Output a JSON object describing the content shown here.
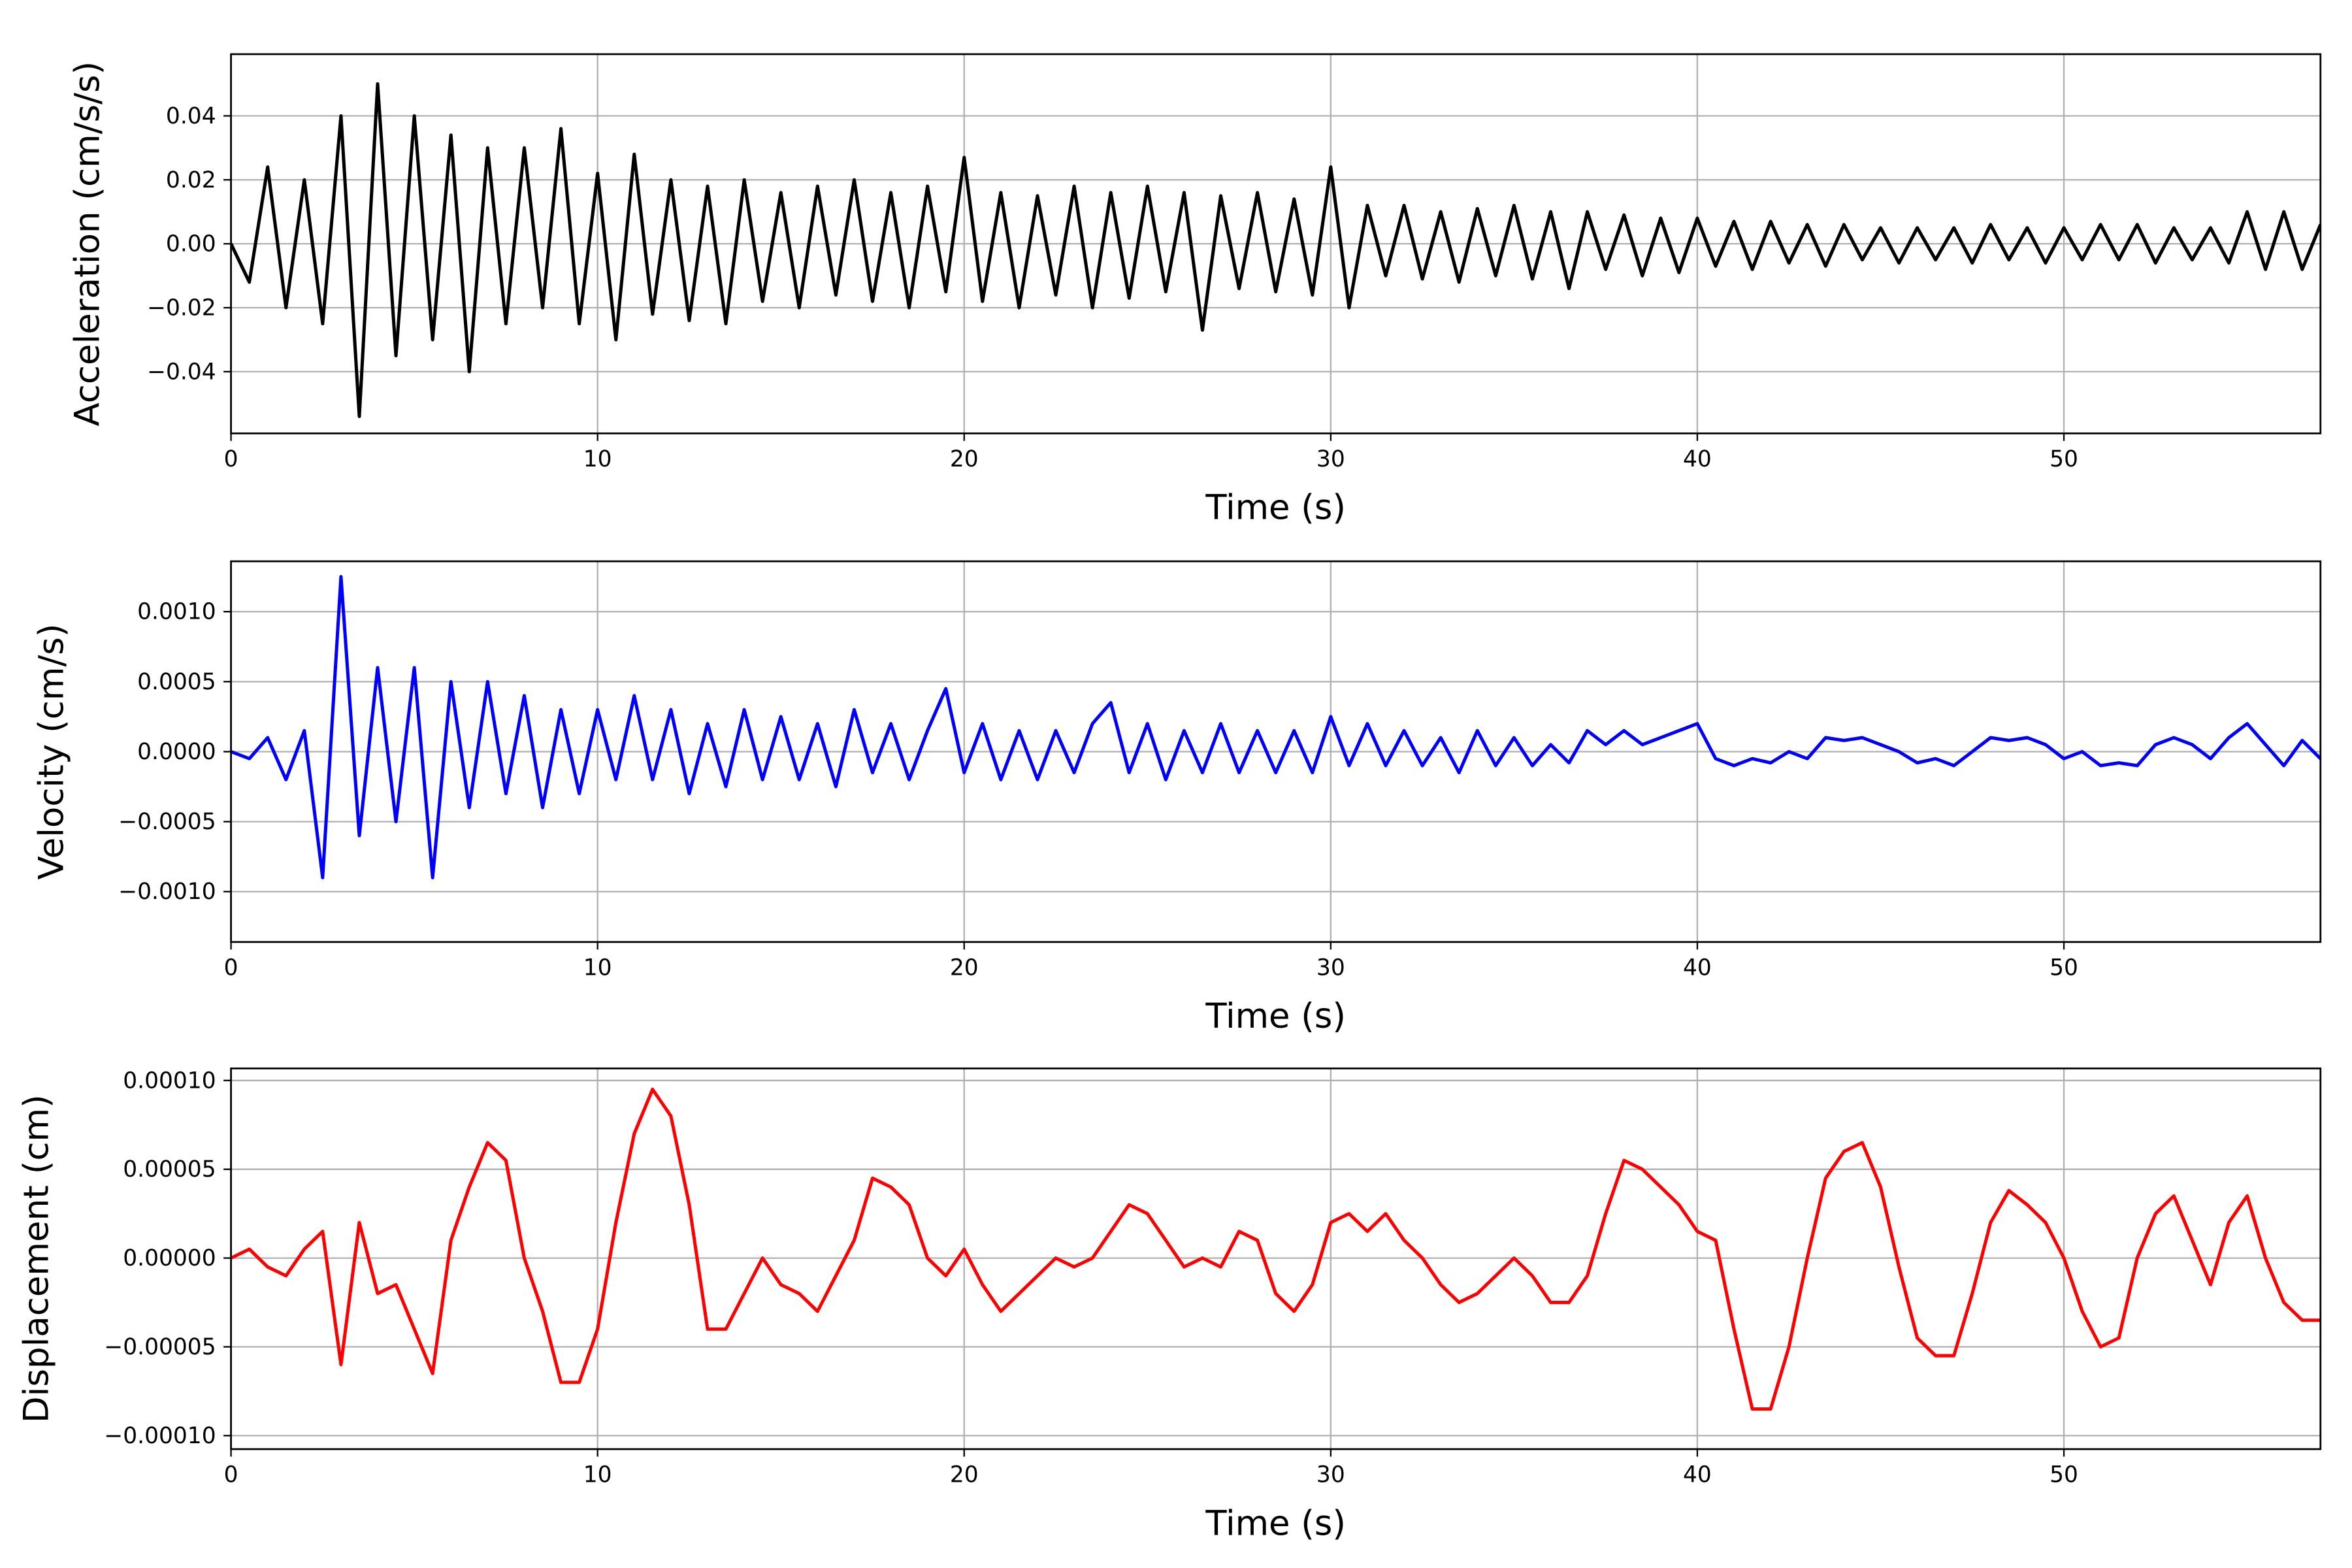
{
  "chart_data": [
    {
      "type": "line",
      "xlabel": "Time (s)",
      "ylabel": "Acceleration (cm/s/s)",
      "color": "#000000",
      "grid": true,
      "xlim": [
        0,
        57
      ],
      "xticks": [
        0,
        10,
        20,
        30,
        40,
        50
      ],
      "ylim": [
        -0.0593,
        0.0593
      ],
      "yticks": [
        {
          "value": -0.04,
          "label": "−0.04"
        },
        {
          "value": -0.02,
          "label": "−0.02"
        },
        {
          "value": 0,
          "label": "0.00"
        },
        0.02,
        0.04
      ],
      "x": [
        0,
        0.5,
        1,
        1.5,
        2,
        2.5,
        3,
        3.5,
        4,
        4.5,
        5,
        5.5,
        6,
        6.5,
        7,
        7.5,
        8,
        8.5,
        9,
        9.5,
        10,
        10.5,
        11,
        11.5,
        12,
        12.5,
        13,
        13.5,
        14,
        14.5,
        15,
        15.5,
        16,
        16.5,
        17,
        17.5,
        18,
        18.5,
        19,
        19.5,
        20,
        20.5,
        21,
        21.5,
        22,
        22.5,
        23,
        23.5,
        24,
        24.5,
        25,
        25.5,
        26,
        26.5,
        27,
        27.5,
        28,
        28.5,
        29,
        29.5,
        30,
        30.5,
        31,
        31.5,
        32,
        32.5,
        33,
        33.5,
        34,
        34.5,
        35,
        35.5,
        36,
        36.5,
        37,
        37.5,
        38,
        38.5,
        39,
        39.5,
        40,
        40.5,
        41,
        41.5,
        42,
        42.5,
        43,
        43.5,
        44,
        44.5,
        45,
        45.5,
        46,
        46.5,
        47,
        47.5,
        48,
        48.5,
        49,
        49.5,
        50,
        50.5,
        51,
        51.5,
        52,
        52.5,
        53,
        53.5,
        54,
        54.5,
        55,
        55.5,
        56,
        56.5,
        57
      ],
      "values": [
        0,
        -0.012,
        0.024,
        -0.02,
        0.02,
        -0.025,
        0.04,
        -0.054,
        0.05,
        -0.035,
        0.04,
        -0.03,
        0.034,
        -0.04,
        0.03,
        -0.025,
        0.03,
        -0.02,
        0.036,
        -0.025,
        0.022,
        -0.03,
        0.028,
        -0.022,
        0.02,
        -0.024,
        0.018,
        -0.025,
        0.02,
        -0.018,
        0.016,
        -0.02,
        0.018,
        -0.016,
        0.02,
        -0.018,
        0.016,
        -0.02,
        0.018,
        -0.015,
        0.027,
        -0.018,
        0.016,
        -0.02,
        0.015,
        -0.016,
        0.018,
        -0.02,
        0.016,
        -0.017,
        0.018,
        -0.015,
        0.016,
        -0.027,
        0.015,
        -0.014,
        0.016,
        -0.015,
        0.014,
        -0.016,
        0.024,
        -0.02,
        0.012,
        -0.01,
        0.012,
        -0.011,
        0.01,
        -0.012,
        0.011,
        -0.01,
        0.012,
        -0.011,
        0.01,
        -0.014,
        0.01,
        -0.008,
        0.009,
        -0.01,
        0.008,
        -0.009,
        0.008,
        -0.007,
        0.007,
        -0.008,
        0.007,
        -0.006,
        0.006,
        -0.007,
        0.006,
        -0.005,
        0.005,
        -0.006,
        0.005,
        -0.005,
        0.005,
        -0.006,
        0.006,
        -0.005,
        0.005,
        -0.006,
        0.005,
        -0.005,
        0.006,
        -0.005,
        0.006,
        -0.006,
        0.005,
        -0.005,
        0.005,
        -0.006,
        0.01,
        -0.008,
        0.01,
        -0.008,
        0.006
      ]
    },
    {
      "type": "line",
      "xlabel": "Time (s)",
      "ylabel": "Velocity (cm/s)",
      "color": "#0000ff",
      "grid": true,
      "xlim": [
        0,
        57
      ],
      "xticks": [
        0,
        10,
        20,
        30,
        40,
        50
      ],
      "ylim": [
        -0.00136,
        0.00136
      ],
      "yticks": [
        {
          "value": -0.001,
          "label": "−0.0010"
        },
        {
          "value": -0.0005,
          "label": "−0.0005"
        },
        {
          "value": 0,
          "label": "0.0000"
        },
        0.0005,
        {
          "value": 0.001,
          "label": "0.0010"
        }
      ],
      "x": [
        0,
        0.5,
        1,
        1.5,
        2,
        2.5,
        3,
        3.5,
        4,
        4.5,
        5,
        5.5,
        6,
        6.5,
        7,
        7.5,
        8,
        8.5,
        9,
        9.5,
        10,
        10.5,
        11,
        11.5,
        12,
        12.5,
        13,
        13.5,
        14,
        14.5,
        15,
        15.5,
        16,
        16.5,
        17,
        17.5,
        18,
        18.5,
        19,
        19.5,
        20,
        20.5,
        21,
        21.5,
        22,
        22.5,
        23,
        23.5,
        24,
        24.5,
        25,
        25.5,
        26,
        26.5,
        27,
        27.5,
        28,
        28.5,
        29,
        29.5,
        30,
        30.5,
        31,
        31.5,
        32,
        32.5,
        33,
        33.5,
        34,
        34.5,
        35,
        35.5,
        36,
        36.5,
        37,
        37.5,
        38,
        38.5,
        39,
        39.5,
        40,
        40.5,
        41,
        41.5,
        42,
        42.5,
        43,
        43.5,
        44,
        44.5,
        45,
        45.5,
        46,
        46.5,
        47,
        47.5,
        48,
        48.5,
        49,
        49.5,
        50,
        50.5,
        51,
        51.5,
        52,
        52.5,
        53,
        53.5,
        54,
        54.5,
        55,
        55.5,
        56,
        56.5,
        57
      ],
      "values": [
        0,
        -5e-05,
        0.0001,
        -0.0002,
        0.00015,
        -0.0009,
        0.00125,
        -0.0006,
        0.0006,
        -0.0005,
        0.0006,
        -0.0009,
        0.0005,
        -0.0004,
        0.0005,
        -0.0003,
        0.0004,
        -0.0004,
        0.0003,
        -0.0003,
        0.0003,
        -0.0002,
        0.0004,
        -0.0002,
        0.0003,
        -0.0003,
        0.0002,
        -0.00025,
        0.0003,
        -0.0002,
        0.00025,
        -0.0002,
        0.0002,
        -0.00025,
        0.0003,
        -0.00015,
        0.0002,
        -0.0002,
        0.00015,
        0.00045,
        -0.00015,
        0.0002,
        -0.0002,
        0.00015,
        -0.0002,
        0.00015,
        -0.00015,
        0.0002,
        0.00035,
        -0.00015,
        0.0002,
        -0.0002,
        0.00015,
        -0.00015,
        0.0002,
        -0.00015,
        0.00015,
        -0.00015,
        0.00015,
        -0.00015,
        0.00025,
        -0.0001,
        0.0002,
        -0.0001,
        0.00015,
        -0.0001,
        0.0001,
        -0.00015,
        0.00015,
        -0.0001,
        0.0001,
        -0.0001,
        5e-05,
        -8e-05,
        0.00015,
        5e-05,
        0.00015,
        5e-05,
        0.0001,
        0.00015,
        0.0002,
        -5e-05,
        -0.0001,
        -5e-05,
        -8e-05,
        0,
        -5e-05,
        0.0001,
        8e-05,
        0.0001,
        5e-05,
        0,
        -8e-05,
        -5e-05,
        -0.0001,
        0,
        0.0001,
        8e-05,
        0.0001,
        5e-05,
        -5e-05,
        0,
        -0.0001,
        -8e-05,
        -0.0001,
        5e-05,
        0.0001,
        5e-05,
        -5e-05,
        0.0001,
        0.0002,
        5e-05,
        -0.0001,
        8e-05,
        -5e-05
      ]
    },
    {
      "type": "line",
      "xlabel": "Time (s)",
      "ylabel": "Displacement (cm)",
      "color": "#ff0000",
      "grid": true,
      "xlim": [
        0,
        57
      ],
      "xticks": [
        0,
        10,
        20,
        30,
        40,
        50
      ],
      "ylim": [
        -0.0001076,
        0.0001068
      ],
      "yticks": [
        {
          "value": -0.0001,
          "label": "−0.00010"
        },
        {
          "value": -5e-05,
          "label": "−0.00005"
        },
        {
          "value": 0,
          "label": "0.00000"
        },
        5e-05,
        {
          "value": 0.0001,
          "label": "0.00010"
        }
      ],
      "x": [
        0,
        0.5,
        1,
        1.5,
        2,
        2.5,
        3,
        3.5,
        4,
        4.5,
        5,
        5.5,
        6,
        6.5,
        7,
        7.5,
        8,
        8.5,
        9,
        9.5,
        10,
        10.5,
        11,
        11.5,
        12,
        12.5,
        13,
        13.5,
        14,
        14.5,
        15,
        15.5,
        16,
        16.5,
        17,
        17.5,
        18,
        18.5,
        19,
        19.5,
        20,
        20.5,
        21,
        21.5,
        22,
        22.5,
        23,
        23.5,
        24,
        24.5,
        25,
        25.5,
        26,
        26.5,
        27,
        27.5,
        28,
        28.5,
        29,
        29.5,
        30,
        30.5,
        31,
        31.5,
        32,
        32.5,
        33,
        33.5,
        34,
        34.5,
        35,
        35.5,
        36,
        36.5,
        37,
        37.5,
        38,
        38.5,
        39,
        39.5,
        40,
        40.5,
        41,
        41.5,
        42,
        42.5,
        43,
        43.5,
        44,
        44.5,
        45,
        45.5,
        46,
        46.5,
        47,
        47.5,
        48,
        48.5,
        49,
        49.5,
        50,
        50.5,
        51,
        51.5,
        52,
        52.5,
        53,
        53.5,
        54,
        54.5,
        55,
        55.5,
        56,
        56.5,
        57
      ],
      "values": [
        0,
        5e-06,
        -5e-06,
        -1e-05,
        5e-06,
        1.5e-05,
        -6e-05,
        2e-05,
        -2e-05,
        -1.5e-05,
        -4e-05,
        -6.5e-05,
        1e-05,
        4e-05,
        6.5e-05,
        5.5e-05,
        0,
        -3e-05,
        -7e-05,
        -7e-05,
        -4e-05,
        2e-05,
        7e-05,
        9.5e-05,
        8e-05,
        3e-05,
        -4e-05,
        -4e-05,
        -2e-05,
        0,
        -1.5e-05,
        -2e-05,
        -3e-05,
        -1e-05,
        1e-05,
        4.5e-05,
        4e-05,
        3e-05,
        0,
        -1e-05,
        5e-06,
        -1.5e-05,
        -3e-05,
        -2e-05,
        -1e-05,
        0,
        -5e-06,
        0,
        1.5e-05,
        3e-05,
        2.5e-05,
        1e-05,
        -5e-06,
        0,
        -5e-06,
        1.5e-05,
        1e-05,
        -2e-05,
        -3e-05,
        -1.5e-05,
        2e-05,
        2.5e-05,
        1.5e-05,
        2.5e-05,
        1e-05,
        0,
        -1.5e-05,
        -2.5e-05,
        -2e-05,
        -1e-05,
        0,
        -1e-05,
        -2.5e-05,
        -2.5e-05,
        -1e-05,
        2.5e-05,
        5.5e-05,
        5e-05,
        4e-05,
        3e-05,
        1.5e-05,
        1e-05,
        -4e-05,
        -8.5e-05,
        -8.5e-05,
        -5e-05,
        0,
        4.5e-05,
        6e-05,
        6.5e-05,
        4e-05,
        -5e-06,
        -4.5e-05,
        -5.5e-05,
        -5.5e-05,
        -2e-05,
        2e-05,
        3.8e-05,
        3e-05,
        2e-05,
        0,
        -3e-05,
        -5e-05,
        -4.5e-05,
        0,
        2.5e-05,
        3.5e-05,
        1e-05,
        -1.5e-05,
        2e-05,
        3.5e-05,
        0,
        -2.5e-05,
        -3.5e-05,
        -3.5e-05
      ]
    }
  ]
}
